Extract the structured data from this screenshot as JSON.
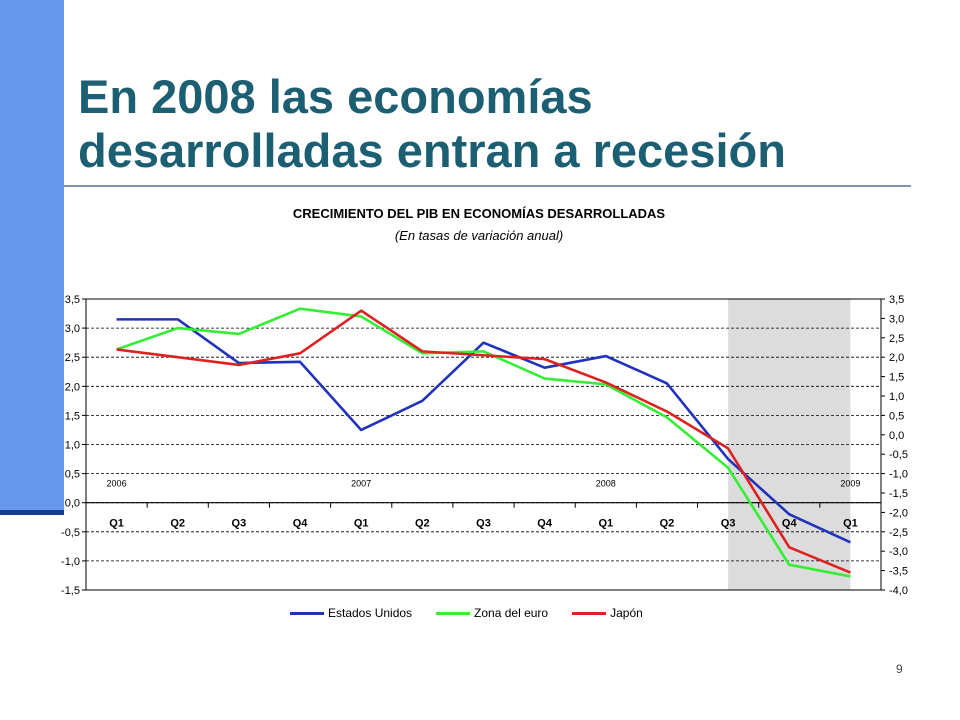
{
  "slide": {
    "title": "En 2008 las economías\ndesarrolladas entran a recesión",
    "page_number": "9",
    "accent_bar_color": "#6699ee",
    "title_color": "#1c5f73"
  },
  "chart_data": {
    "type": "line",
    "title": "CRECIMIENTO DEL PIB EN ECONOMÍAS DESARROLLADAS",
    "subtitle": "(En tasas de variación anual)",
    "categories": [
      "Q1",
      "Q2",
      "Q3",
      "Q4",
      "Q1",
      "Q2",
      "Q3",
      "Q4",
      "Q1",
      "Q2",
      "Q3",
      "Q4",
      "Q1"
    ],
    "year_labels": [
      {
        "label": "2006",
        "index": 0
      },
      {
        "label": "2007",
        "index": 4
      },
      {
        "label": "2008",
        "index": 8
      },
      {
        "label": "2009",
        "index": 12
      }
    ],
    "shaded_range": [
      10.5,
      12.5
    ],
    "series": [
      {
        "name": "Estados Unidos",
        "color": "#2233bb",
        "axis": "left",
        "values": [
          3.15,
          3.15,
          2.4,
          2.42,
          1.25,
          1.75,
          2.75,
          2.32,
          2.52,
          2.05,
          0.75,
          -0.2,
          -0.68
        ]
      },
      {
        "name": "Zona del euro",
        "color": "#33ee33",
        "axis": "right",
        "values": [
          2.2,
          2.75,
          2.6,
          3.25,
          3.05,
          2.1,
          2.15,
          1.45,
          1.3,
          0.45,
          -0.85,
          -3.35,
          -3.65
        ]
      },
      {
        "name": "Japón",
        "color": "#dd2222",
        "axis": "right",
        "values": [
          2.2,
          2.0,
          1.8,
          2.1,
          3.2,
          2.15,
          2.05,
          1.95,
          1.35,
          0.6,
          -0.35,
          -2.9,
          -3.55
        ]
      }
    ],
    "y_left": {
      "min": -1.5,
      "max": 3.5,
      "ticks": [
        "3,5",
        "3,0",
        "2,5",
        "2,0",
        "1,5",
        "1,0",
        "0,5",
        "0,0",
        "-0,5",
        "-1,0",
        "-1,5"
      ]
    },
    "y_right": {
      "min": -4.0,
      "max": 3.5,
      "ticks": [
        "3,5",
        "3,0",
        "2,5",
        "2,0",
        "1,5",
        "1,0",
        "0,5",
        "0,0",
        "-0,5",
        "-1,0",
        "-1,5",
        "-2,0",
        "-2,5",
        "-3,0",
        "-3,5",
        "-4,0"
      ]
    },
    "grid": "horizontal dashed",
    "legend_position": "bottom"
  }
}
